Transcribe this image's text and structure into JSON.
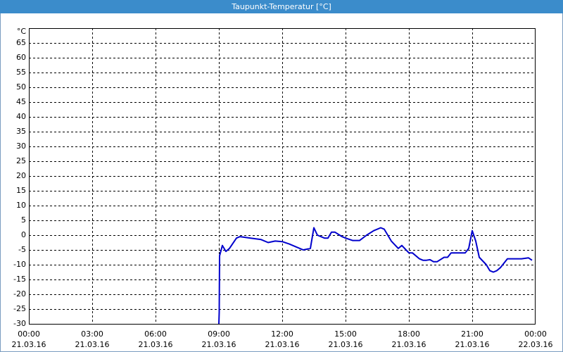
{
  "chart_data": {
    "type": "line",
    "title": "Taupunkt-Temperatur [°C]",
    "y_label": "°C",
    "grid": true,
    "grid_style": "dashed",
    "xlim": [
      "21.03.16 00:00",
      "22.03.16 00:00"
    ],
    "xticks": [
      {
        "value": "21.03.16 00:00",
        "label": [
          "00:00",
          "21.03.16"
        ]
      },
      {
        "value": "21.03.16 03:00",
        "label": [
          "03:00",
          "21.03.16"
        ]
      },
      {
        "value": "21.03.16 06:00",
        "label": [
          "06:00",
          "21.03.16"
        ]
      },
      {
        "value": "21.03.16 09:00",
        "label": [
          "09:00",
          "21.03.16"
        ]
      },
      {
        "value": "21.03.16 12:00",
        "label": [
          "12:00",
          "21.03.16"
        ]
      },
      {
        "value": "21.03.16 15:00",
        "label": [
          "15:00",
          "21.03.16"
        ]
      },
      {
        "value": "21.03.16 18:00",
        "label": [
          "18:00",
          "21.03.16"
        ]
      },
      {
        "value": "21.03.16 21:00",
        "label": [
          "21:00",
          "21.03.16"
        ]
      },
      {
        "value": "22.03.16 00:00",
        "label": [
          "00:00",
          "22.03.16"
        ]
      }
    ],
    "ylim": [
      -30,
      70
    ],
    "yticks": [
      -30,
      -25,
      -20,
      -15,
      -10,
      -5,
      0,
      5,
      10,
      15,
      20,
      25,
      30,
      35,
      40,
      45,
      50,
      55,
      60,
      65
    ],
    "x": [
      "21.03.16 09:00",
      "21.03.16 09:01",
      "21.03.16 09:02",
      "21.03.16 09:10",
      "21.03.16 09:20",
      "21.03.16 09:30",
      "21.03.16 09:50",
      "21.03.16 10:00",
      "21.03.16 10:30",
      "21.03.16 11:00",
      "21.03.16 11:20",
      "21.03.16 11:40",
      "21.03.16 12:00",
      "21.03.16 12:20",
      "21.03.16 12:40",
      "21.03.16 13:00",
      "21.03.16 13:20",
      "21.03.16 13:30",
      "21.03.16 13:40",
      "21.03.16 14:00",
      "21.03.16 14:10",
      "21.03.16 14:20",
      "21.03.16 14:30",
      "21.03.16 14:50",
      "21.03.16 15:00",
      "21.03.16 15:20",
      "21.03.16 15:40",
      "21.03.16 16:00",
      "21.03.16 16:20",
      "21.03.16 16:40",
      "21.03.16 16:50",
      "21.03.16 17:10",
      "21.03.16 17:30",
      "21.03.16 17:40",
      "21.03.16 18:00",
      "21.03.16 18:10",
      "21.03.16 18:30",
      "21.03.16 18:40",
      "21.03.16 18:50",
      "21.03.16 19:00",
      "21.03.16 19:10",
      "21.03.16 19:20",
      "21.03.16 19:40",
      "21.03.16 19:50",
      "21.03.16 20:00",
      "21.03.16 20:40",
      "21.03.16 20:50",
      "21.03.16 21:00",
      "21.03.16 21:10",
      "21.03.16 21:20",
      "21.03.16 21:40",
      "21.03.16 21:50",
      "21.03.16 22:00",
      "21.03.16 22:10",
      "21.03.16 22:20",
      "21.03.16 22:40",
      "21.03.16 23:00",
      "21.03.16 23:20",
      "21.03.16 23:40",
      "21.03.16 23:50"
    ],
    "series": [
      {
        "color": "#0000cc",
        "values": [
          -30,
          -26,
          -7,
          -3.5,
          -5.5,
          -4.5,
          -1,
          -0.5,
          -1,
          -1.5,
          -2.5,
          -2,
          -2.2,
          -3,
          -4,
          -5,
          -4.5,
          2.5,
          0,
          -1,
          -1,
          1,
          1,
          -0.5,
          -1,
          -1.8,
          -1.8,
          0,
          1.5,
          2.5,
          2,
          -2,
          -4.5,
          -3.5,
          -6,
          -6,
          -8,
          -8.5,
          -8.5,
          -8.3,
          -9,
          -9,
          -7.5,
          -7.5,
          -6,
          -6,
          -4.5,
          1.5,
          -2,
          -7.5,
          -10,
          -12,
          -12.5,
          -12,
          -11,
          -8,
          -8,
          -8,
          -7.7,
          -8.5
        ]
      }
    ]
  }
}
